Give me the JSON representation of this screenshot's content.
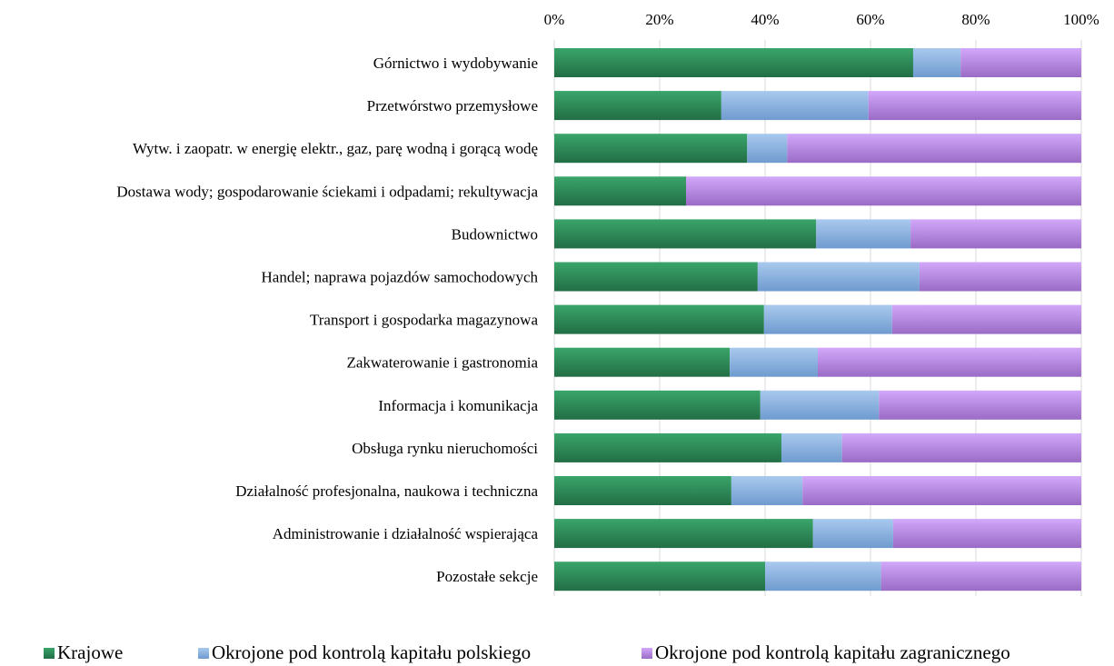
{
  "chart_data": {
    "type": "bar",
    "orientation": "horizontal",
    "stacked": "percent",
    "title": "",
    "xlabel": "",
    "ylabel": "",
    "xlim": [
      0,
      100
    ],
    "x_ticks": [
      "0%",
      "20%",
      "40%",
      "60%",
      "80%",
      "100%"
    ],
    "x_axis_position": "top",
    "grid": "vertical",
    "legend_position": "bottom",
    "categories": [
      "Górnictwo i wydobywanie",
      "Przetwórstwo przemysłowe",
      "Wytw. i zaopatr. w energię elektr., gaz, parę wodną i gorącą wodę",
      "Dostawa wody; gospodarowanie ściekami i odpadami; rekultywacja",
      "Budownictwo",
      "Handel; naprawa pojazdów samochodowych",
      "Transport i gospodarka magazynowa",
      "Zakwaterowanie i gastronomia",
      "Informacja i komunikacja",
      "Obsługa rynku nieruchomości",
      "Działalność profesjonalna, naukowa i techniczna",
      "Administrowanie i działalność wspierająca",
      "Pozostałe sekcje"
    ],
    "series": [
      {
        "name": "Krajowe",
        "color": "#2e8b57",
        "values": [
          68.1,
          31.7,
          36.6,
          25.0,
          49.7,
          38.6,
          39.8,
          33.3,
          39.1,
          43.1,
          33.6,
          49.1,
          40.0
        ]
      },
      {
        "name": "Okrojone pod kontrolą kapitału polskiego",
        "color": "#8cb4e2",
        "values": [
          9.0,
          27.9,
          7.6,
          0.0,
          17.9,
          30.7,
          24.3,
          16.7,
          22.5,
          11.5,
          13.5,
          15.2,
          22.0
        ]
      },
      {
        "name": "Okrojone pod kontrolą kapitału zagranicznego",
        "color": "#b98ae0",
        "values": [
          22.9,
          40.4,
          55.8,
          75.0,
          32.4,
          30.7,
          35.9,
          50.0,
          38.4,
          45.4,
          52.9,
          35.7,
          38.0
        ]
      }
    ]
  }
}
